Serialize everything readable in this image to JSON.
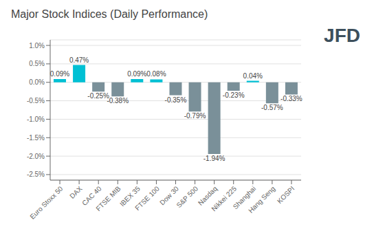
{
  "chart_data": {
    "type": "bar",
    "title": "Major Stock Indices (Daily Performance)",
    "categories": [
      "Euro Stoxx 50",
      "DAX",
      "CAC 40",
      "FTSE MIB",
      "IBEX 35",
      "FTSE 100",
      "Dow 30",
      "S&P 500",
      "Nasdaq",
      "Nikkei 225",
      "Shanghai",
      "Hang Seng",
      "KOSPI"
    ],
    "values": [
      0.09,
      0.47,
      -0.25,
      -0.38,
      0.09,
      0.08,
      -0.35,
      -0.79,
      -1.94,
      -0.23,
      0.04,
      -0.57,
      -0.33
    ],
    "value_labels": [
      "0.09%",
      "0.47%",
      "-0.25%",
      "-0.38%",
      "0.09%",
      "0.08%",
      "-0.35%",
      "-0.79%",
      "-1.94%",
      "-0.23%",
      "0.04%",
      "-0.57%",
      "-0.33%"
    ],
    "colors": [
      "#00c0d4",
      "#00c0d4",
      "#7a9099",
      "#7a9099",
      "#00c0d4",
      "#00c0d4",
      "#7a9099",
      "#7a9099",
      "#7a9099",
      "#7a9099",
      "#00c0d4",
      "#7a9099",
      "#7a9099"
    ],
    "data_labels": true,
    "ylim": [
      -2.65,
      1.15
    ],
    "yticks": [
      {
        "value": 1.0,
        "label": "1.0%"
      },
      {
        "value": 0.5,
        "label": "0.5%"
      },
      {
        "value": 0.0,
        "label": "0.0%"
      },
      {
        "value": -0.5,
        "label": "-0.5%"
      },
      {
        "value": -1.0,
        "label": "-1.0%"
      },
      {
        "value": -1.5,
        "label": "-1.5%"
      },
      {
        "value": -2.0,
        "label": "-2.0%"
      },
      {
        "value": -2.5,
        "label": "-2.5%"
      }
    ],
    "grid": true,
    "annotations": [
      {
        "text": "JFD",
        "color": "#3d4f5c"
      }
    ]
  }
}
